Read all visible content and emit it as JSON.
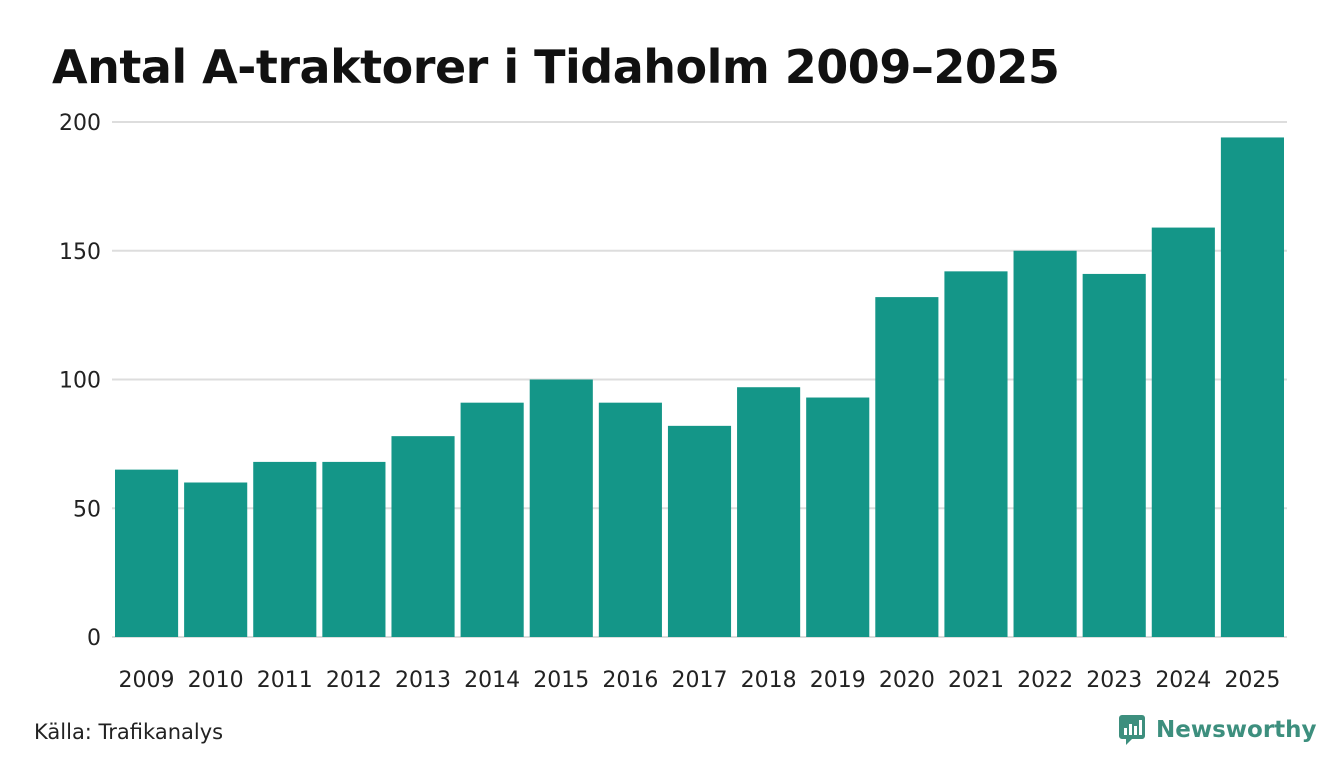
{
  "title": "Antal A-traktorer i Tidaholm 2009–2025",
  "source": "Källa: Trafikanalys",
  "brand": "Newsworthy",
  "colors": {
    "bar": "#149688",
    "grid": "#dddddd",
    "brand": "#3d8f7e"
  },
  "chart_data": {
    "type": "bar",
    "title": "Antal A-traktorer i Tidaholm 2009–2025",
    "xlabel": "",
    "ylabel": "",
    "ylim": [
      0,
      200
    ],
    "yticks": [
      0,
      50,
      100,
      150,
      200
    ],
    "grid": true,
    "categories": [
      "2009",
      "2010",
      "2011",
      "2012",
      "2013",
      "2014",
      "2015",
      "2016",
      "2017",
      "2018",
      "2019",
      "2020",
      "2021",
      "2022",
      "2023",
      "2024",
      "2025"
    ],
    "values": [
      65,
      60,
      68,
      68,
      78,
      91,
      100,
      91,
      82,
      97,
      93,
      132,
      142,
      150,
      141,
      159,
      194
    ]
  }
}
